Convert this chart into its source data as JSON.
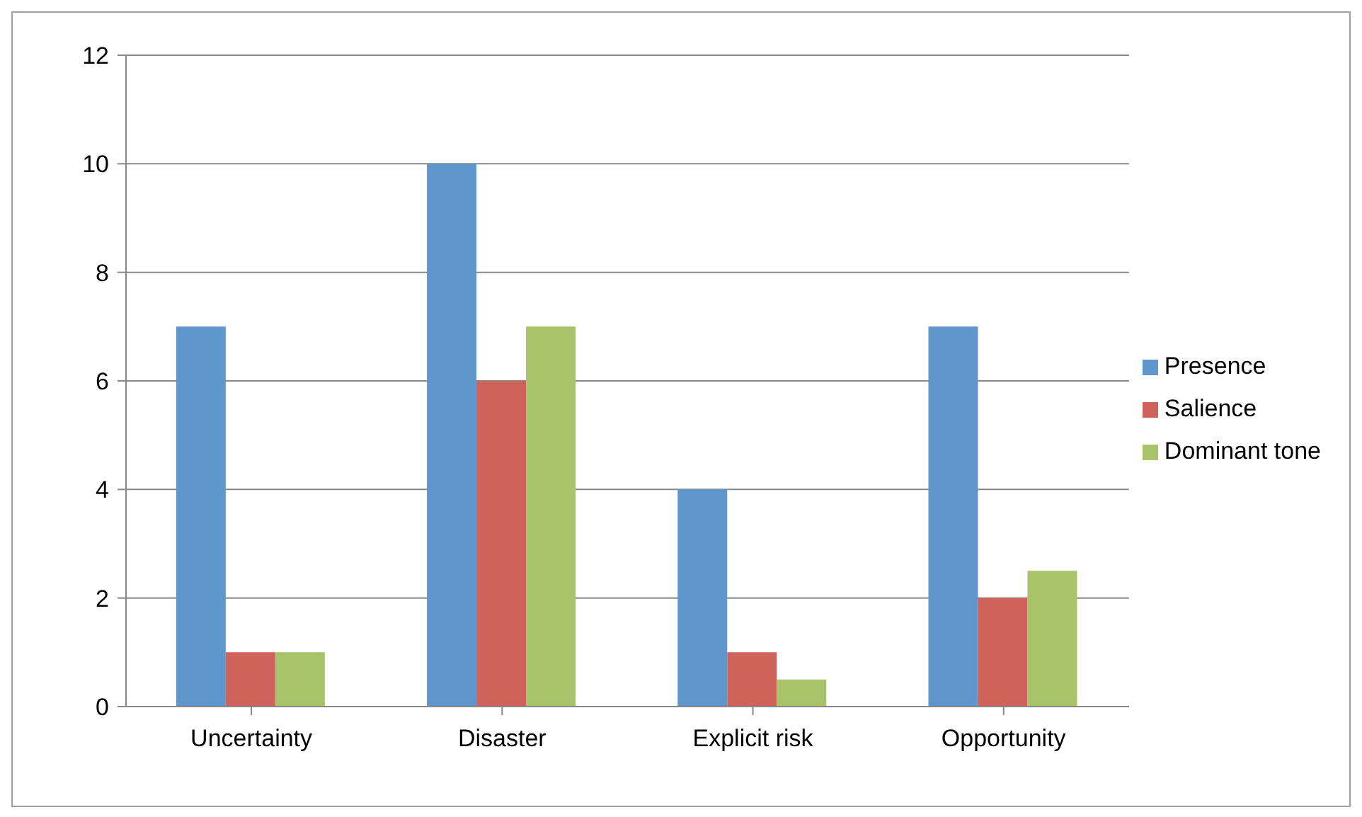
{
  "chart_data": {
    "type": "bar",
    "categories": [
      "Uncertainty",
      "Disaster",
      "Explicit risk",
      "Opportunity"
    ],
    "series": [
      {
        "name": "Presence",
        "color": "#5f97cd",
        "values": [
          7,
          10,
          4,
          7
        ]
      },
      {
        "name": "Salience",
        "color": "#cf625a",
        "values": [
          1,
          6,
          1,
          2
        ]
      },
      {
        "name": "Dominant tone",
        "color": "#a8c46a",
        "values": [
          1,
          7,
          0.5,
          2.5
        ]
      }
    ],
    "ylim": [
      0,
      12
    ],
    "yticks": [
      0,
      2,
      4,
      6,
      8,
      10,
      12
    ],
    "grid": "y",
    "legend": "right"
  }
}
